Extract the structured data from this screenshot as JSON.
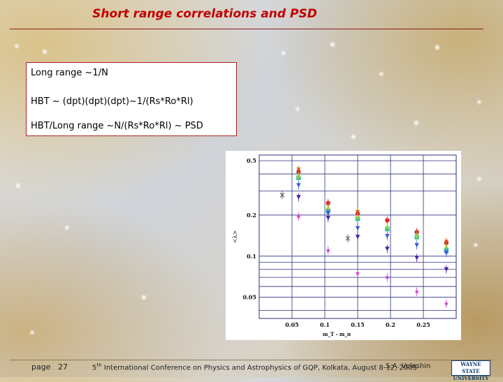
{
  "slide": {
    "title": "Short range correlations and PSD",
    "lines": [
      "Long range ~1/N",
      "HBT ~ (dpt)(dpt)(dpt)~1/(Rs*Ro*Rl)",
      "HBT/Long range ~N/(Rs*Ro*Rl) ~ PSD"
    ]
  },
  "footer": {
    "page_label": "page",
    "page_number": "27",
    "conference_sup": "th",
    "conference_num": "5",
    "conference": "International Conference on Physics and Astrophysics of GQP, Kolkata, August 8-12, 2005",
    "author": "S.A. Voloshin",
    "logo_line1": "WAYNE STATE",
    "logo_line2": "UNIVERSITY"
  },
  "colors": {
    "title": "#c00000",
    "box_border": "#b02020",
    "plot_grid": "#2b2f7a"
  },
  "chart_data": {
    "type": "scatter",
    "title": "",
    "xlabel": "m_T - m_π",
    "ylabel": "<λ>",
    "yscale": "log",
    "xlim": [
      0,
      0.3
    ],
    "ylim": [
      0.035,
      0.55
    ],
    "xticks": [
      0.05,
      0.1,
      0.15,
      0.2,
      0.25
    ],
    "xtick_labels": [
      "0.05",
      "0.1",
      "0.15",
      "0.2",
      "0.25"
    ],
    "yticks": [
      0.05,
      0.1,
      0.2,
      0.5
    ],
    "ytick_labels": [
      "0.05",
      "0.1",
      "0.2",
      "0.5"
    ],
    "grid": true,
    "legend": "none",
    "series": [
      {
        "color": "#d48a1f",
        "marker": "triangle-down",
        "points": [
          [
            0.06,
            0.43
          ],
          [
            0.105,
            0.235
          ],
          [
            0.15,
            0.21
          ],
          [
            0.195,
            0.178
          ],
          [
            0.24,
            0.148
          ],
          [
            0.285,
            0.127
          ]
        ]
      },
      {
        "color": "#e02828",
        "marker": "circle",
        "points": [
          [
            0.06,
            0.415
          ],
          [
            0.105,
            0.245
          ],
          [
            0.15,
            0.205
          ],
          [
            0.195,
            0.183
          ],
          [
            0.24,
            0.15
          ],
          [
            0.285,
            0.125
          ]
        ]
      },
      {
        "color": "#2db8b0",
        "marker": "square",
        "points": [
          [
            0.06,
            0.375
          ],
          [
            0.105,
            0.215
          ],
          [
            0.15,
            0.188
          ],
          [
            0.195,
            0.158
          ],
          [
            0.24,
            0.138
          ],
          [
            0.285,
            0.11
          ]
        ]
      },
      {
        "color": "#9ad23a",
        "marker": "triangle-up",
        "points": [
          [
            0.06,
            0.39
          ],
          [
            0.105,
            0.228
          ],
          [
            0.15,
            0.195
          ],
          [
            0.195,
            0.165
          ],
          [
            0.24,
            0.142
          ],
          [
            0.285,
            0.118
          ]
        ]
      },
      {
        "color": "#3a5ad8",
        "marker": "triangle-down",
        "points": [
          [
            0.06,
            0.33
          ],
          [
            0.105,
            0.205
          ],
          [
            0.15,
            0.16
          ],
          [
            0.195,
            0.14
          ],
          [
            0.24,
            0.12
          ],
          [
            0.285,
            0.105
          ]
        ]
      },
      {
        "color": "#4a20a0",
        "marker": "triangle-down",
        "points": [
          [
            0.06,
            0.27
          ],
          [
            0.105,
            0.19
          ],
          [
            0.15,
            0.138
          ],
          [
            0.195,
            0.113
          ],
          [
            0.24,
            0.097
          ],
          [
            0.285,
            0.08
          ]
        ]
      },
      {
        "color": "#d03ad0",
        "marker": "star",
        "points": [
          [
            0.06,
            0.195
          ],
          [
            0.105,
            0.11
          ],
          [
            0.15,
            0.075
          ],
          [
            0.195,
            0.07
          ],
          [
            0.24,
            0.055
          ],
          [
            0.285,
            0.045
          ]
        ]
      },
      {
        "color": "#555555",
        "marker": "cross-open",
        "points": [
          [
            0.035,
            0.28
          ],
          [
            0.135,
            0.135
          ]
        ]
      }
    ]
  }
}
